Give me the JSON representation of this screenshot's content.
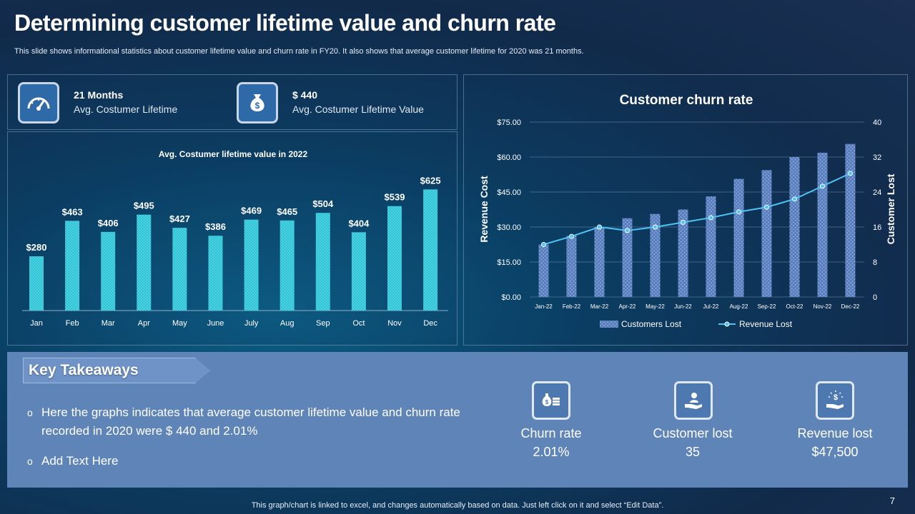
{
  "header": {
    "title": "Determining customer lifetime value and churn rate",
    "subtitle": "This slide shows informational statistics about customer lifetime value and churn rate in FY20.  It also shows that average customer lifetime for 2020 was 21 months."
  },
  "kpis": [
    {
      "icon": "speedometer-icon",
      "value": "21 Months",
      "label": "Avg. Costumer  Lifetime"
    },
    {
      "icon": "money-bag-icon",
      "value": "$ 440",
      "label": "Avg. Costumer  Lifetime Value"
    }
  ],
  "chart_data": [
    {
      "type": "bar",
      "title": "Avg. Costumer lifetime value in 2022",
      "categories": [
        "Jan",
        "Feb",
        "Mar",
        "Apr",
        "May",
        "June",
        "July",
        "Aug",
        "Sep",
        "Oct",
        "Nov",
        "Dec"
      ],
      "values": [
        280,
        463,
        406,
        495,
        427,
        386,
        469,
        465,
        504,
        404,
        539,
        625
      ],
      "value_labels": [
        "$280",
        "$463",
        "$406",
        "$495",
        "$427",
        "$386",
        "$469",
        "$465",
        "$504",
        "$404",
        "$539",
        "$625"
      ],
      "ylim": [
        0,
        700
      ],
      "colors": {
        "bar": "#2ec4d6",
        "text": "#ffffff"
      }
    },
    {
      "type": "bar+line",
      "title": "Customer churn rate",
      "categories": [
        "Jan-22",
        "Feb-22",
        "Mar-22",
        "Apr-22",
        "May-22",
        "Jun-22",
        "Jul-22",
        "Aug-22",
        "Sep-22",
        "Oct-22",
        "Nov-22",
        "Dec-22"
      ],
      "series": [
        {
          "name": "Customers Lost",
          "type": "bar",
          "axis": "right",
          "values": [
            12,
            14,
            16,
            18,
            19,
            20,
            23,
            27,
            29,
            32,
            33,
            35
          ]
        },
        {
          "name": "Revenue Lost",
          "type": "line",
          "axis": "left",
          "values": [
            22.5,
            26,
            30,
            28.5,
            30,
            32,
            34,
            36.5,
            38.5,
            42,
            47.5,
            53
          ]
        }
      ],
      "ylabel_left": "Revenue Cost",
      "ylabel_right": "Customer Lost",
      "ylim_left": [
        0,
        75
      ],
      "ylim_right": [
        0,
        40
      ],
      "yticks_left": [
        "$0.00",
        "$15.00",
        "$30.00",
        "$45.00",
        "$60.00",
        "$75.00"
      ],
      "yticks_right": [
        "0",
        "8",
        "16",
        "24",
        "32",
        "40"
      ],
      "colors": {
        "bar": "#5a7fbf",
        "line": "#4fc3f7"
      }
    }
  ],
  "takeaways": {
    "heading": "Key Takeaways",
    "bullets": [
      "Here the graphs indicates that average customer lifetime value and churn rate recorded in 2020 were $ 440 and 2.01%",
      "Add Text Here"
    ],
    "bullet_symbol": "o"
  },
  "stats": [
    {
      "icon": "money-coins-icon",
      "label": "Churn rate",
      "value": "2.01%"
    },
    {
      "icon": "hand-person-icon",
      "label": "Customer  lost",
      "value": "35"
    },
    {
      "icon": "hand-money-icon",
      "label": "Revenue  lost",
      "value": "$47,500"
    }
  ],
  "footer": {
    "note": "This graph/chart is linked to excel,  and changes automatically based on data. Just left click on it and select “Edit Data”.",
    "page_number": "7"
  }
}
